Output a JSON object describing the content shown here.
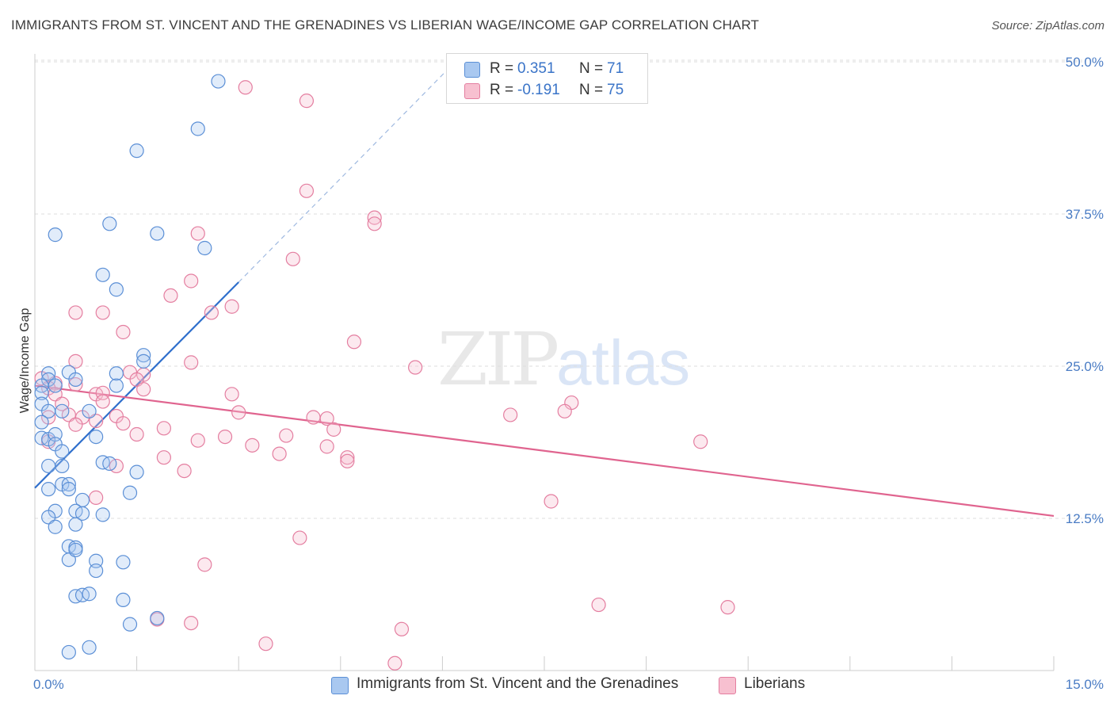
{
  "title": "IMMIGRANTS FROM ST. VINCENT AND THE GRENADINES VS LIBERIAN WAGE/INCOME GAP CORRELATION CHART",
  "source": "Source: ZipAtlas.com",
  "watermark": {
    "zip": "ZIP",
    "atlas": "atlas"
  },
  "legend": {
    "r_label": "R =",
    "n_label": "N =",
    "rows": [
      {
        "r": "0.351",
        "n": "71",
        "color": "#a9c8f0",
        "stroke": "#5b8fd6"
      },
      {
        "r": "-0.191",
        "n": "75",
        "color": "#f7c0d0",
        "stroke": "#e47ea0"
      }
    ]
  },
  "bottom_legend": [
    {
      "label": "Immigrants from St. Vincent and the Grenadines",
      "color": "#a9c8f0",
      "stroke": "#5b8fd6"
    },
    {
      "label": "Liberians",
      "color": "#f7c0d0",
      "stroke": "#e47ea0"
    }
  ],
  "chart_data": {
    "type": "scatter",
    "title": "IMMIGRANTS FROM ST. VINCENT AND THE GRENADINES VS LIBERIAN WAGE/INCOME GAP CORRELATION CHART",
    "xlabel": "",
    "ylabel": "Wage/Income Gap",
    "xlim": [
      0,
      15
    ],
    "ylim": [
      0,
      52
    ],
    "x_tick_labels": [
      "0.0%",
      "15.0%"
    ],
    "y_ticks": [
      12.5,
      25.0,
      37.5,
      50.0
    ],
    "y_tick_labels": [
      "12.5%",
      "25.0%",
      "37.5%",
      "50.0%"
    ],
    "grid": "horizontal dashed",
    "legend_position": "top-center",
    "series": [
      {
        "name": "Immigrants from St. Vincent and the Grenadines",
        "color": "#5b8fd6",
        "trend": {
          "x": [
            0.0,
            3.0
          ],
          "y": [
            15.0,
            31.9
          ],
          "dashed_to": [
            6.1,
            49.5
          ]
        },
        "points": [
          [
            2.7,
            48.4
          ],
          [
            2.4,
            44.5
          ],
          [
            1.5,
            42.7
          ],
          [
            1.1,
            36.7
          ],
          [
            0.3,
            35.8
          ],
          [
            1.8,
            35.9
          ],
          [
            2.5,
            34.7
          ],
          [
            1.0,
            32.5
          ],
          [
            1.2,
            31.3
          ],
          [
            1.6,
            25.9
          ],
          [
            1.6,
            25.4
          ],
          [
            1.2,
            24.4
          ],
          [
            0.2,
            24.4
          ],
          [
            0.5,
            24.5
          ],
          [
            0.2,
            23.9
          ],
          [
            0.6,
            23.9
          ],
          [
            0.1,
            23.4
          ],
          [
            0.3,
            23.4
          ],
          [
            1.2,
            23.4
          ],
          [
            0.1,
            22.8
          ],
          [
            0.1,
            21.9
          ],
          [
            0.2,
            21.3
          ],
          [
            0.4,
            21.3
          ],
          [
            0.8,
            21.3
          ],
          [
            0.1,
            20.4
          ],
          [
            0.1,
            19.1
          ],
          [
            0.2,
            19.0
          ],
          [
            0.3,
            19.4
          ],
          [
            0.3,
            18.6
          ],
          [
            0.9,
            19.2
          ],
          [
            0.4,
            18.0
          ],
          [
            0.2,
            16.8
          ],
          [
            0.4,
            16.8
          ],
          [
            1.0,
            17.1
          ],
          [
            1.1,
            17.0
          ],
          [
            1.5,
            16.3
          ],
          [
            0.4,
            15.3
          ],
          [
            0.5,
            15.3
          ],
          [
            0.2,
            14.9
          ],
          [
            0.5,
            14.9
          ],
          [
            1.4,
            14.6
          ],
          [
            0.7,
            14.0
          ],
          [
            0.3,
            13.1
          ],
          [
            0.6,
            13.1
          ],
          [
            0.2,
            12.6
          ],
          [
            0.7,
            12.9
          ],
          [
            1.0,
            12.8
          ],
          [
            0.3,
            11.8
          ],
          [
            0.6,
            12.0
          ],
          [
            0.5,
            10.2
          ],
          [
            0.6,
            10.1
          ],
          [
            0.5,
            9.1
          ],
          [
            0.9,
            9.0
          ],
          [
            0.6,
            9.9
          ],
          [
            1.3,
            8.9
          ],
          [
            0.9,
            8.2
          ],
          [
            0.6,
            6.1
          ],
          [
            0.7,
            6.2
          ],
          [
            0.8,
            6.3
          ],
          [
            1.3,
            5.8
          ],
          [
            1.8,
            4.3
          ],
          [
            1.4,
            3.8
          ],
          [
            0.5,
            1.5
          ],
          [
            0.8,
            1.9
          ]
        ]
      },
      {
        "name": "Liberians",
        "color": "#e47ea0",
        "trend": {
          "x": [
            0.0,
            15.0
          ],
          "y": [
            23.4,
            12.7
          ]
        },
        "points": [
          [
            3.1,
            47.9
          ],
          [
            4.0,
            46.8
          ],
          [
            4.0,
            39.4
          ],
          [
            5.0,
            37.2
          ],
          [
            5.0,
            36.7
          ],
          [
            2.4,
            35.9
          ],
          [
            3.8,
            33.8
          ],
          [
            2.3,
            32.0
          ],
          [
            2.9,
            29.9
          ],
          [
            2.0,
            30.8
          ],
          [
            2.6,
            29.4
          ],
          [
            1.0,
            29.4
          ],
          [
            0.6,
            29.4
          ],
          [
            1.3,
            27.8
          ],
          [
            4.7,
            27.0
          ],
          [
            2.3,
            25.3
          ],
          [
            0.6,
            25.4
          ],
          [
            5.6,
            24.9
          ],
          [
            1.4,
            24.5
          ],
          [
            1.6,
            24.3
          ],
          [
            1.5,
            23.9
          ],
          [
            0.1,
            24.0
          ],
          [
            0.3,
            23.6
          ],
          [
            0.6,
            23.5
          ],
          [
            0.2,
            23.2
          ],
          [
            1.6,
            23.1
          ],
          [
            0.3,
            22.7
          ],
          [
            0.9,
            22.7
          ],
          [
            1.0,
            22.8
          ],
          [
            2.9,
            22.7
          ],
          [
            7.9,
            22.0
          ],
          [
            1.0,
            22.1
          ],
          [
            0.4,
            21.9
          ],
          [
            7.8,
            21.3
          ],
          [
            3.0,
            21.2
          ],
          [
            0.5,
            21.0
          ],
          [
            0.7,
            20.8
          ],
          [
            1.2,
            20.9
          ],
          [
            0.2,
            20.8
          ],
          [
            4.1,
            20.8
          ],
          [
            4.3,
            20.7
          ],
          [
            7.0,
            21.0
          ],
          [
            0.9,
            20.5
          ],
          [
            0.6,
            20.2
          ],
          [
            1.3,
            20.3
          ],
          [
            1.9,
            19.9
          ],
          [
            4.4,
            19.8
          ],
          [
            1.5,
            19.4
          ],
          [
            3.7,
            19.3
          ],
          [
            2.8,
            19.2
          ],
          [
            2.4,
            18.9
          ],
          [
            0.2,
            18.8
          ],
          [
            4.3,
            18.4
          ],
          [
            3.2,
            18.5
          ],
          [
            9.8,
            18.8
          ],
          [
            3.6,
            17.8
          ],
          [
            1.9,
            17.5
          ],
          [
            4.6,
            17.5
          ],
          [
            4.6,
            17.2
          ],
          [
            1.2,
            16.8
          ],
          [
            2.2,
            16.4
          ],
          [
            0.9,
            14.2
          ],
          [
            7.6,
            13.9
          ],
          [
            3.9,
            10.9
          ],
          [
            2.5,
            8.7
          ],
          [
            8.3,
            5.4
          ],
          [
            10.2,
            5.2
          ],
          [
            1.8,
            4.2
          ],
          [
            2.3,
            3.9
          ],
          [
            5.4,
            3.4
          ],
          [
            3.4,
            2.2
          ],
          [
            5.3,
            0.6
          ]
        ]
      }
    ]
  }
}
